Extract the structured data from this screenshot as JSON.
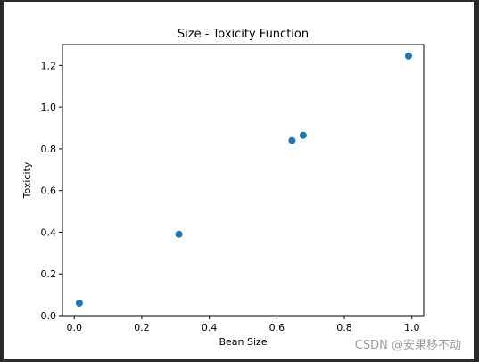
{
  "chart_data": {
    "type": "scatter",
    "title": "Size - Toxicity Function",
    "xlabel": "Bean Size",
    "ylabel": "Toxicity",
    "xlim": [
      -0.035,
      1.035
    ],
    "ylim": [
      0.0,
      1.3
    ],
    "xticks": [
      0.0,
      0.2,
      0.4,
      0.6,
      0.8,
      1.0
    ],
    "xtick_labels": [
      "0.0",
      "0.2",
      "0.4",
      "0.6",
      "0.8",
      "1.0"
    ],
    "yticks": [
      0.0,
      0.2,
      0.4,
      0.6,
      0.8,
      1.0,
      1.2
    ],
    "ytick_labels": [
      "0.0",
      "0.2",
      "0.4",
      "0.6",
      "0.8",
      "1.0",
      "1.2"
    ],
    "grid": false,
    "marker_color": "#1f77b4",
    "x": [
      0.015,
      0.31,
      0.645,
      0.678,
      0.99
    ],
    "y": [
      0.06,
      0.39,
      0.84,
      0.865,
      1.245
    ]
  },
  "watermark": "CSDN @安果移不动"
}
